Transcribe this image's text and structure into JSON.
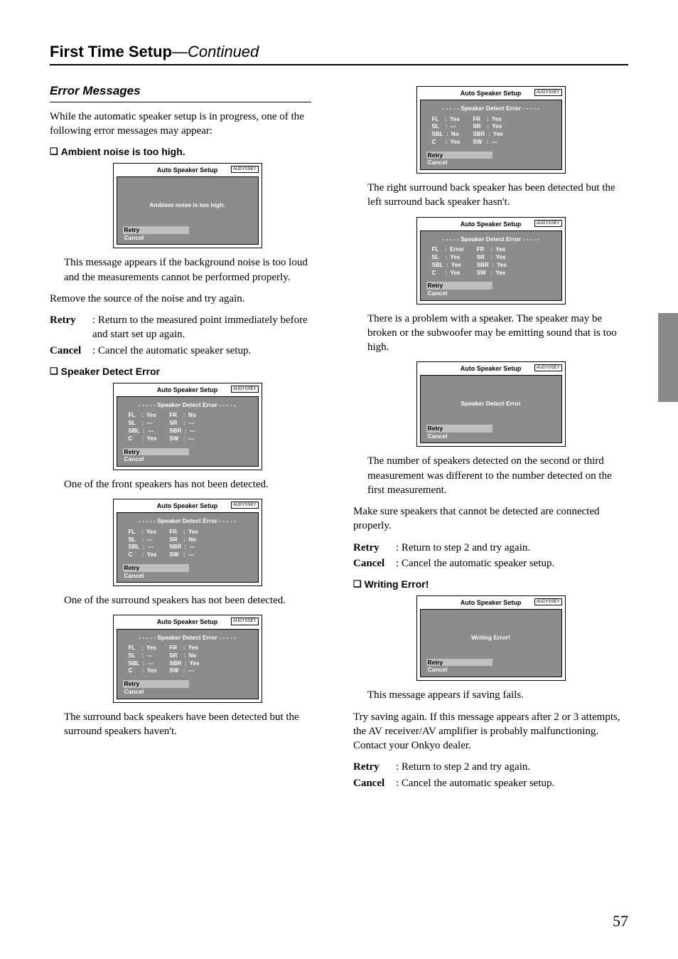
{
  "page": {
    "section_title": "First Time Setup",
    "continued": "—Continued",
    "page_number": "57"
  },
  "left": {
    "heading": "Error Messages",
    "intro": "While the automatic speaker setup is in progress, one of the following error messages may appear:",
    "ambient": {
      "label": "Ambient noise is too high.",
      "caption": "This message appears if the background noise is too loud and the measurements cannot be performed properly.",
      "remove": "Remove the source of the noise and try again.",
      "retry_label": "Retry",
      "retry_text": ": Return to the measured point immediately before and start set up again.",
      "cancel_label": "Cancel",
      "cancel_text": ": Cancel the automatic speaker setup."
    },
    "speaker_detect": {
      "label": "Speaker Detect Error",
      "cap1": "One of the front speakers has not been detected.",
      "cap2": "One of the surround speakers has not been detected.",
      "cap3": "The surround back speakers have been detected but the surround speakers haven't."
    }
  },
  "right": {
    "cap1": "The right surround back speaker has been detected but the left surround back speaker hasn't.",
    "cap2": "There is a problem with a speaker. The speaker may be broken or the subwoofer may be emitting sound that is too high.",
    "cap3": "The number of speakers detected on the second or third measurement was different to the number detected on the first measurement.",
    "make_sure": "Make sure speakers that cannot be detected are connected properly.",
    "retry_label": "Retry",
    "retry_text": ": Return to step 2 and try again.",
    "cancel_label": "Cancel",
    "cancel_text": ": Cancel the automatic speaker setup.",
    "writing": {
      "label": "Writing Error!",
      "caption": "This message appears if saving fails.",
      "try_saving": "Try saving again. If this message appears after 2 or 3 attempts, the AV receiver/AV amplifier is probably malfunctioning. Contact your Onkyo dealer.",
      "retry_label": "Retry",
      "retry_text": ": Return to step 2 and try again.",
      "cancel_label": "Cancel",
      "cancel_text": ": Cancel the automatic speaker setup."
    }
  },
  "osd": {
    "header": "Auto Speaker Setup",
    "audyssey": "AUDYSSEY",
    "ambient_msg": "Ambient noise is too high.",
    "retry": "Retry",
    "cancel": "Cancel",
    "detect_title": "- - - - - Speaker Detect Error - - - - -",
    "detect_center": "Speaker Detect Error",
    "writing_center": "Writing Error!",
    "grid1": {
      "l": [
        "FL    :  Yes",
        "SL    :  ---",
        "SBL  :  ---",
        "C      :  Yes"
      ],
      "r": [
        "FR    :  No",
        "SR    :  ---",
        "SBR  :  ---",
        "SW   :  ---"
      ]
    },
    "grid2": {
      "l": [
        "FL    :  Yes",
        "SL    :  ---",
        "SBL  :  ---",
        "C      :  Yes"
      ],
      "r": [
        "FR    :  Yes",
        "SR    :  No",
        "SBR  :  ---",
        "SW   :  ---"
      ]
    },
    "grid3": {
      "l": [
        "FL    :  Yes",
        "SL    :  ---",
        "SBL  :  ---",
        "C      :  Yes"
      ],
      "r": [
        "FR    :  Yes",
        "SR    :  No",
        "SBR  :  Yes",
        "SW   :  ---"
      ]
    },
    "grid4": {
      "l": [
        "FL    :  Yes",
        "SL    :  ---",
        "SBL  :  No",
        "C      :  Yes"
      ],
      "r": [
        "FR    :  Yes",
        "SR    :  Yes",
        "SBR  :  Yes",
        "SW   :  ---"
      ]
    },
    "grid5": {
      "l": [
        "FL    :  Error",
        "SL    :  Yes",
        "SBL  :  Yes",
        "C      :  Yes"
      ],
      "r": [
        "FR    :  Yes",
        "SR    :  Yes",
        "SBR  :  Yes",
        "SW   :  Yes"
      ]
    }
  }
}
